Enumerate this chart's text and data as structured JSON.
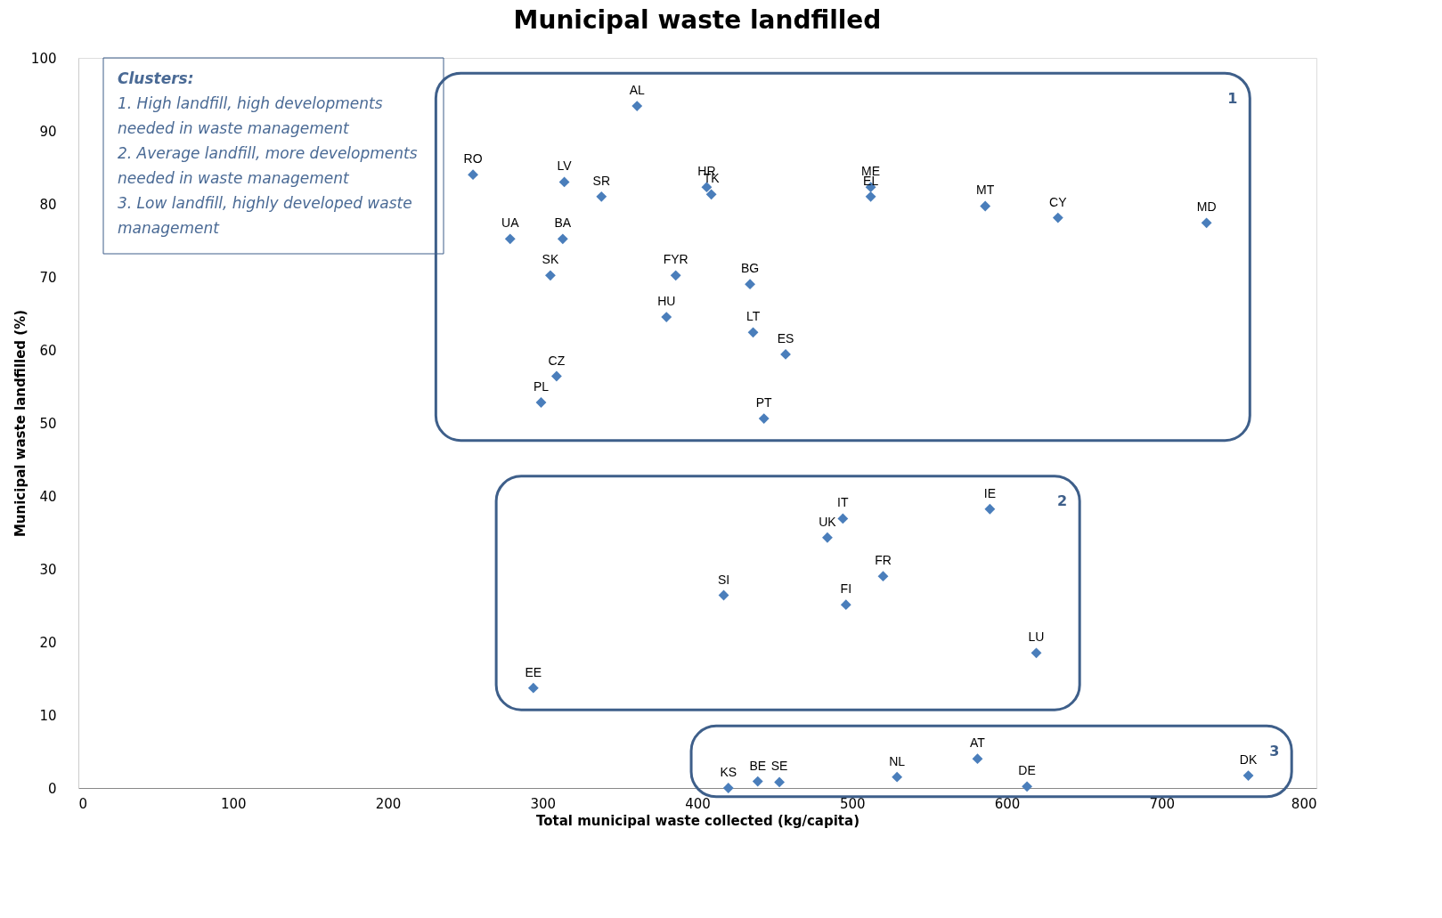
{
  "chart_data": {
    "type": "scatter",
    "title": "Municipal waste landfilled",
    "xlabel": "Total municipal waste collected (kg/capita)",
    "ylabel": "Municipal waste landfilled (%)",
    "xlim": [
      0,
      800
    ],
    "xticks": [
      0,
      100,
      200,
      300,
      400,
      500,
      600,
      700,
      800
    ],
    "ylim": [
      0,
      100
    ],
    "yticks": [
      0,
      10,
      20,
      30,
      40,
      50,
      60,
      70,
      80,
      90,
      100
    ],
    "grid": false,
    "legend": false,
    "marker": "diamond",
    "series": [
      {
        "name": "1",
        "color": "#4a7ebb",
        "x": [
          255,
          314,
          338,
          361,
          279,
          313,
          305,
          309,
          299,
          386,
          380,
          406,
          409,
          434,
          436,
          457,
          443,
          512,
          512,
          586,
          633,
          729
        ],
        "values": [
          84.0,
          83.0,
          81.0,
          93.4,
          75.2,
          75.2,
          70.2,
          56.4,
          52.8,
          70.2,
          64.5,
          82.3,
          81.3,
          69.0,
          62.4,
          59.4,
          50.6,
          82.3,
          81.0,
          79.7,
          78.1,
          77.4
        ]
      },
      {
        "name": "2",
        "color": "#4a7ebb",
        "x": [
          494,
          484,
          589,
          520,
          417,
          496,
          619,
          294
        ],
        "values": [
          36.9,
          34.3,
          38.2,
          29.0,
          26.4,
          25.1,
          18.5,
          13.7
        ]
      },
      {
        "name": "3",
        "color": "#4a7ebb",
        "x": [
          581,
          529,
          756,
          439,
          453,
          420,
          613
        ],
        "values": [
          4.0,
          1.5,
          1.7,
          0.9,
          0.8,
          0,
          0.2
        ]
      }
    ],
    "annotations": [
      "Clusters:",
      "1. High landfill, high developments needed in waste management",
      "2. Average landfill, more developments needed in waste management",
      "3. Low landfill, highly developed waste management",
      {
        "text": "RO",
        "x": 255,
        "y": 84.0
      },
      {
        "text": "LV",
        "x": 314,
        "y": 83.0
      },
      {
        "text": "SR",
        "x": 338,
        "y": 81.0
      },
      {
        "text": "AL",
        "x": 361,
        "y": 93.4
      },
      {
        "text": "UA",
        "x": 279,
        "y": 75.2
      },
      {
        "text": "BA",
        "x": 313,
        "y": 75.2
      },
      {
        "text": "SK",
        "x": 305,
        "y": 70.2
      },
      {
        "text": "CZ",
        "x": 309,
        "y": 56.4
      },
      {
        "text": "PL",
        "x": 299,
        "y": 52.8
      },
      {
        "text": "FYR",
        "x": 386,
        "y": 70.2
      },
      {
        "text": "HU",
        "x": 380,
        "y": 64.5
      },
      {
        "text": "HR",
        "x": 406,
        "y": 82.3
      },
      {
        "text": "TK",
        "x": 409,
        "y": 81.3
      },
      {
        "text": "BG",
        "x": 434,
        "y": 69.0
      },
      {
        "text": "LT",
        "x": 436,
        "y": 62.4
      },
      {
        "text": "ES",
        "x": 457,
        "y": 59.4
      },
      {
        "text": "PT",
        "x": 443,
        "y": 50.6
      },
      {
        "text": "ME",
        "x": 512,
        "y": 82.3
      },
      {
        "text": "EL",
        "x": 512,
        "y": 81.0
      },
      {
        "text": "MT",
        "x": 586,
        "y": 79.7
      },
      {
        "text": "CY",
        "x": 633,
        "y": 78.1
      },
      {
        "text": "MD",
        "x": 729,
        "y": 77.4
      },
      {
        "text": "IT",
        "x": 494,
        "y": 36.9
      },
      {
        "text": "UK",
        "x": 484,
        "y": 34.3
      },
      {
        "text": "IE",
        "x": 589,
        "y": 38.2
      },
      {
        "text": "FR",
        "x": 520,
        "y": 29.0
      },
      {
        "text": "SI",
        "x": 417,
        "y": 26.4
      },
      {
        "text": "FI",
        "x": 496,
        "y": 25.1
      },
      {
        "text": "LU",
        "x": 619,
        "y": 18.5
      },
      {
        "text": "EE",
        "x": 294,
        "y": 13.7
      },
      {
        "text": "AT",
        "x": 581,
        "y": 4.0
      },
      {
        "text": "NL",
        "x": 529,
        "y": 1.5
      },
      {
        "text": "DK",
        "x": 756,
        "y": 1.7
      },
      {
        "text": "BE",
        "x": 439,
        "y": 0.9
      },
      {
        "text": "SE",
        "x": 453,
        "y": 0.8
      },
      {
        "text": "KS",
        "x": 420,
        "y": 0
      },
      {
        "text": "DE",
        "x": 613,
        "y": 0.2
      }
    ]
  }
}
